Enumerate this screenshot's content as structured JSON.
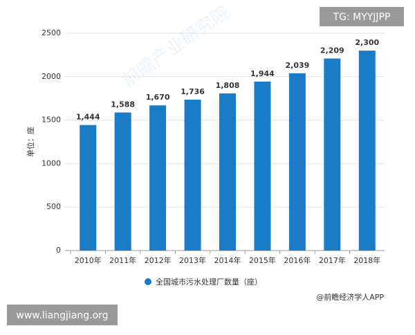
{
  "badge": "TG: MYYJJPP",
  "site": "www.liangjiang.org",
  "source": "@前瞻经济学人APP",
  "watermark": "前瞻产业研究院",
  "chart_data": {
    "type": "bar",
    "y_label": "单位：座",
    "categories": [
      "2010年",
      "2011年",
      "2012年",
      "2013年",
      "2014年",
      "2015年",
      "2016年",
      "2017年",
      "2018年"
    ],
    "series": [
      {
        "name": "全国城市污水处理厂数量（座）",
        "color": "#1a7bc6",
        "values": [
          1444,
          1588,
          1670,
          1736,
          1808,
          1944,
          2039,
          2209,
          2300
        ],
        "value_labels": [
          "1,444",
          "1,588",
          "1,670",
          "1,736",
          "1,808",
          "1,944",
          "2,039",
          "2,209",
          "2,300"
        ]
      }
    ],
    "ylim": [
      0,
      2500
    ],
    "yticks": [
      0,
      500,
      1000,
      1500,
      2000,
      2500
    ],
    "grid": true
  }
}
